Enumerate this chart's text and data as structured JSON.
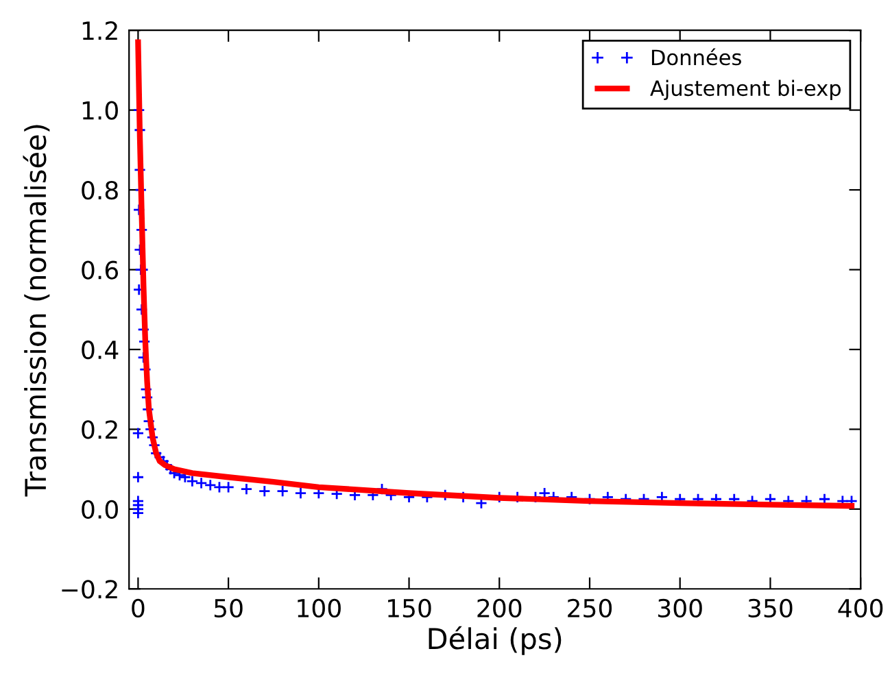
{
  "chart_data": {
    "type": "scatter",
    "xlabel": "Délai (ps)",
    "ylabel": "Transmission (normalisée)",
    "xlim": [
      -5,
      400
    ],
    "ylim": [
      -0.2,
      1.2
    ],
    "xticks": [
      0,
      50,
      100,
      150,
      200,
      250,
      300,
      350,
      400
    ],
    "yticks": [
      {
        "value": -0.2,
        "label": "−0.2"
      },
      {
        "value": 0.0,
        "label": "0.0"
      },
      {
        "value": 0.2,
        "label": "0.2"
      },
      {
        "value": 0.4,
        "label": "0.4"
      },
      {
        "value": 0.6,
        "label": "0.6"
      },
      {
        "value": 0.8,
        "label": "0.8"
      },
      {
        "value": 1.0,
        "label": "1.0"
      },
      {
        "value": 1.2,
        "label": "1.2"
      }
    ],
    "grid": false,
    "legend": "top right",
    "series": [
      {
        "name": "Données",
        "marker": "cross",
        "color": "#0000ff",
        "x": [
          0,
          0,
          0,
          0,
          0,
          0,
          0.5,
          0.5,
          0.5,
          1,
          1,
          1,
          1.5,
          1.5,
          2,
          2,
          2.5,
          3,
          3,
          3.5,
          4,
          4.5,
          5,
          5.5,
          6,
          7,
          8,
          9,
          10,
          12,
          14,
          16,
          18,
          20,
          23,
          26,
          30,
          35,
          40,
          45,
          50,
          60,
          70,
          80,
          90,
          100,
          110,
          120,
          130,
          135,
          140,
          150,
          160,
          170,
          180,
          190,
          200,
          210,
          220,
          225,
          230,
          240,
          250,
          260,
          270,
          280,
          290,
          300,
          310,
          320,
          330,
          340,
          350,
          360,
          370,
          380,
          390,
          395
        ],
        "values": [
          0.0,
          0.01,
          -0.01,
          0.02,
          0.08,
          0.19,
          0.55,
          0.75,
          1.0,
          0.95,
          0.85,
          0.65,
          0.8,
          0.6,
          0.7,
          0.5,
          0.6,
          0.45,
          0.38,
          0.42,
          0.35,
          0.3,
          0.28,
          0.25,
          0.22,
          0.2,
          0.18,
          0.16,
          0.14,
          0.13,
          0.12,
          0.11,
          0.1,
          0.09,
          0.085,
          0.08,
          0.07,
          0.065,
          0.06,
          0.055,
          0.055,
          0.05,
          0.045,
          0.045,
          0.04,
          0.04,
          0.038,
          0.035,
          0.035,
          0.05,
          0.035,
          0.03,
          0.03,
          0.035,
          0.03,
          0.015,
          0.03,
          0.03,
          0.03,
          0.04,
          0.03,
          0.03,
          0.025,
          0.03,
          0.025,
          0.025,
          0.03,
          0.025,
          0.025,
          0.025,
          0.025,
          0.02,
          0.025,
          0.02,
          0.02,
          0.025,
          0.02,
          0.02
        ]
      },
      {
        "name": "Ajustement bi-exp",
        "type": "line",
        "marker": "none",
        "line_style": "solid",
        "color": "#ff0000",
        "x": [
          0,
          1,
          2,
          3,
          4,
          5,
          6,
          8,
          10,
          12,
          15,
          20,
          30,
          50,
          75,
          100,
          150,
          200,
          250,
          300,
          350,
          395
        ],
        "values": [
          1.17,
          0.93,
          0.74,
          0.56,
          0.42,
          0.32,
          0.25,
          0.18,
          0.14,
          0.12,
          0.11,
          0.1,
          0.09,
          0.08,
          0.068,
          0.055,
          0.04,
          0.028,
          0.02,
          0.015,
          0.011,
          0.008
        ]
      }
    ]
  }
}
